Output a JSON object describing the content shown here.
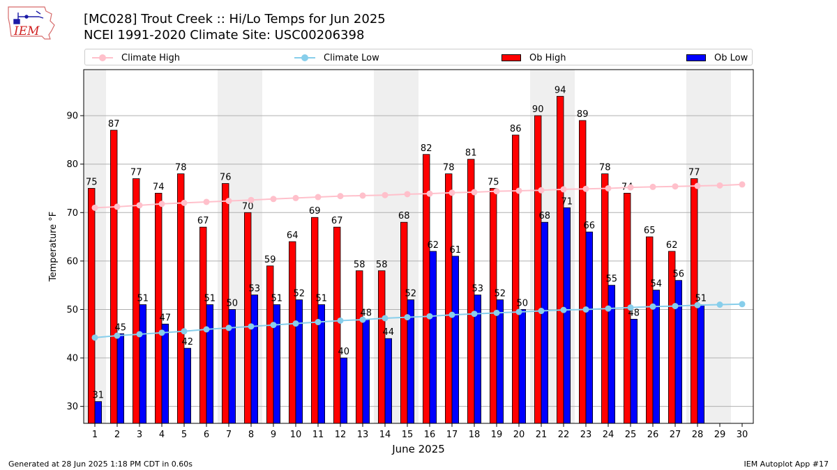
{
  "header": {
    "logo_text": "IEM",
    "title_line1": "[MC028] Trout Creek  :: Hi/Lo Temps for Jun 2025",
    "title_line2": "NCEI 1991-2020 Climate Site: USC00206398"
  },
  "legend": {
    "position": "top",
    "items": [
      {
        "label": "Climate High",
        "kind": "line",
        "color": "#ffc0cb"
      },
      {
        "label": "Climate Low",
        "kind": "line",
        "color": "#87ceeb"
      },
      {
        "label": "Ob High",
        "kind": "bar",
        "color": "#ff0000"
      },
      {
        "label": "Ob Low",
        "kind": "bar",
        "color": "#0000ff"
      }
    ]
  },
  "footer": {
    "left": "Generated at 28 Jun 2025 1:18 PM CDT in 0.60s",
    "right": "IEM Autoplot App #17"
  },
  "chart_data": {
    "type": "bar",
    "xlabel": "June 2025",
    "ylabel": "Temperature °F",
    "ylim": [
      26.5,
      99.5
    ],
    "yticks": [
      30,
      40,
      50,
      60,
      70,
      80,
      90
    ],
    "grid": true,
    "days": [
      1,
      2,
      3,
      4,
      5,
      6,
      7,
      8,
      9,
      10,
      11,
      12,
      13,
      14,
      15,
      16,
      17,
      18,
      19,
      20,
      21,
      22,
      23,
      24,
      25,
      26,
      27,
      28,
      29,
      30
    ],
    "weekend_shading": [
      [
        1,
        1
      ],
      [
        7,
        8
      ],
      [
        14,
        15
      ],
      [
        21,
        22
      ],
      [
        28,
        29
      ]
    ],
    "shade_color": "#efefef",
    "colors": {
      "ob_high": "#ff0000",
      "ob_low": "#0000ff",
      "climate_high": "#ffc0cb",
      "climate_low": "#87ceeb"
    },
    "series": [
      {
        "name": "Ob High",
        "type": "bar",
        "values": [
          75,
          87,
          77,
          74,
          78,
          67,
          76,
          70,
          59,
          64,
          69,
          67,
          58,
          58,
          68,
          82,
          78,
          81,
          75,
          86,
          90,
          94,
          89,
          78,
          74,
          65,
          62,
          77,
          null,
          null
        ]
      },
      {
        "name": "Ob Low",
        "type": "bar",
        "values": [
          31,
          45,
          51,
          47,
          42,
          51,
          50,
          53,
          51,
          52,
          51,
          40,
          48,
          44,
          52,
          62,
          61,
          53,
          52,
          50,
          68,
          71,
          66,
          55,
          48,
          54,
          56,
          51,
          null,
          null
        ]
      },
      {
        "name": "Climate High",
        "type": "line",
        "values": [
          71.0,
          71.2,
          71.5,
          71.8,
          72.0,
          72.2,
          72.4,
          72.6,
          72.8,
          73.0,
          73.2,
          73.4,
          73.5,
          73.6,
          73.8,
          73.9,
          74.1,
          74.2,
          74.4,
          74.5,
          74.6,
          74.8,
          74.9,
          75.0,
          75.2,
          75.3,
          75.4,
          75.5,
          75.6,
          75.8
        ]
      },
      {
        "name": "Climate Low",
        "type": "line",
        "values": [
          44.2,
          44.6,
          44.9,
          45.2,
          45.5,
          45.9,
          46.2,
          46.5,
          46.8,
          47.1,
          47.4,
          47.7,
          47.9,
          48.2,
          48.4,
          48.6,
          48.9,
          49.1,
          49.3,
          49.5,
          49.7,
          49.9,
          50.0,
          50.2,
          50.4,
          50.6,
          50.7,
          50.9,
          51.0,
          51.1
        ]
      }
    ]
  }
}
